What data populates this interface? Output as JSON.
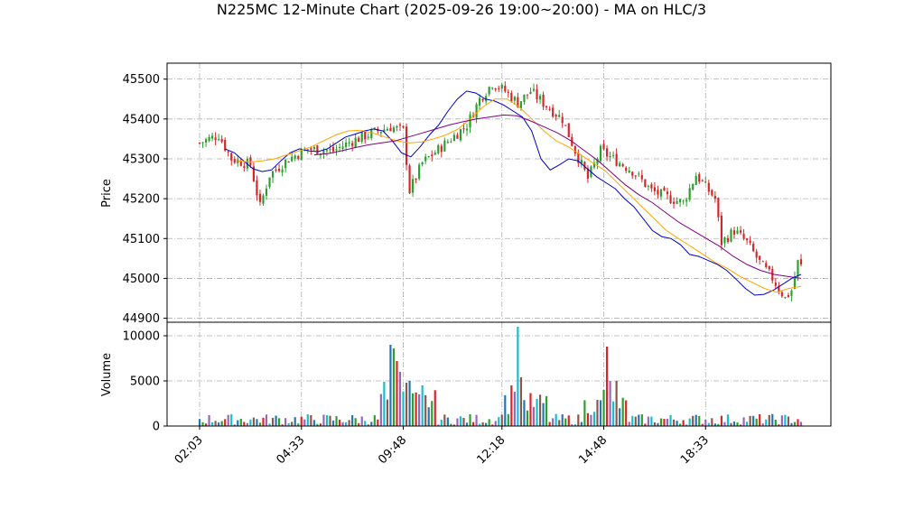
{
  "chart_data": {
    "type": "candlestick",
    "title": "N225MC 12-Minute Chart (2025-09-26 19:00~20:00) - MA on HLC/3",
    "x_tick_labels": [
      "02:03",
      "04:33",
      "09:48",
      "12:18",
      "14:48",
      "18:33"
    ],
    "price_panel": {
      "ylabel": "Price",
      "ylim": [
        44890,
        45540
      ],
      "yticks": [
        44900,
        45000,
        45100,
        45200,
        45300,
        45400,
        45500
      ],
      "ma_series": [
        {
          "color": "#0000cc",
          "values": [
            45325,
            45315,
            45295,
            45275,
            45268,
            45272,
            45295,
            45315,
            45325,
            45320,
            45318,
            45325,
            45340,
            45355,
            45362,
            45370,
            45375,
            45370,
            45345,
            45315,
            45305,
            45330,
            45360,
            45385,
            45420,
            45450,
            45470,
            45465,
            45450,
            45445,
            45435,
            45420,
            45405,
            45370,
            45300,
            45272,
            45285,
            45300,
            45295,
            45275,
            45255,
            45240,
            45225,
            45200,
            45180,
            45150,
            45120,
            45105,
            45100,
            45085,
            45060,
            45055,
            45045,
            45035,
            45020,
            44998,
            44975,
            44958,
            44960,
            44970,
            44985,
            45000,
            45010
          ]
        },
        {
          "color": "#ffa500",
          "values": [
            45295,
            45292,
            45295,
            45300,
            45310,
            45320,
            45330,
            45345,
            45360,
            45370,
            45372,
            45365,
            45355,
            45345,
            45340,
            45342,
            45350,
            45360,
            45375,
            45400,
            45430,
            45450,
            45450,
            45430,
            45400,
            45370,
            45345,
            45330,
            45310,
            45290,
            45270,
            45240,
            45210,
            45180,
            45150,
            45120,
            45100,
            45080,
            45060,
            45040,
            45025,
            45005,
            44990,
            44975,
            44965,
            44975,
            44980
          ]
        },
        {
          "color": "#800080",
          "values": [
            45310,
            45313,
            45320,
            45328,
            45335,
            45340,
            45345,
            45355,
            45365,
            45375,
            45385,
            45393,
            45400,
            45405,
            45410,
            45408,
            45395,
            45380,
            45365,
            45345,
            45320,
            45295,
            45265,
            45235,
            45210,
            45190,
            45165,
            45140,
            45120,
            45100,
            45080,
            45055,
            45035,
            45020,
            45010,
            45005,
            45000
          ]
        }
      ]
    },
    "volume_panel": {
      "ylabel": "Volume",
      "ylim": [
        0,
        11500
      ],
      "yticks": [
        0,
        5000,
        10000
      ],
      "highlights": [
        {
          "at": "09:48",
          "value": 9000
        },
        {
          "at": "12:18",
          "value": 11000
        },
        {
          "at": "14:48",
          "value": 8800
        }
      ]
    }
  }
}
